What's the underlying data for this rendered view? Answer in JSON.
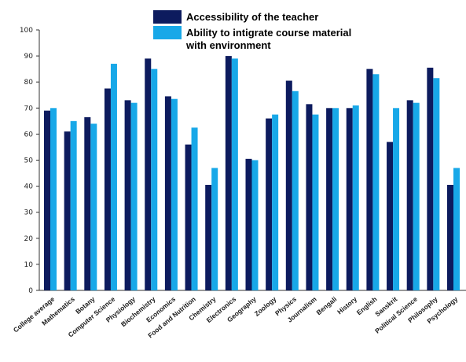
{
  "chart_data": {
    "type": "bar",
    "title": "",
    "xlabel": "",
    "ylabel": "",
    "ylim": [
      0,
      100
    ],
    "yticks": [
      0,
      10,
      20,
      30,
      40,
      50,
      60,
      70,
      80,
      90,
      100
    ],
    "ytick_labels": [
      "0",
      "10",
      "20",
      "30",
      "40",
      "50",
      "60",
      "70",
      "80",
      "90",
      "100"
    ],
    "legend_position": "top",
    "grid": false,
    "categories": [
      "College average",
      "Mathematics",
      "Botany",
      "Computer Science",
      "Physiology",
      "Biochemistry",
      "Economics",
      "Food and Nutrition",
      "Chemistry",
      "Electronics",
      "Geography",
      "Zoology",
      "Physics",
      "Journalism",
      "Bengali",
      "History",
      "English",
      "Sanskrit",
      "Political Science",
      "Philosophy",
      "Psychology"
    ],
    "series": [
      {
        "name": "Accessibility of the teacher",
        "color": "#0d1b5e",
        "values": [
          69,
          61,
          66.5,
          77.5,
          73,
          89,
          74.5,
          56,
          40.5,
          90,
          50.5,
          66,
          80.5,
          71.5,
          70,
          70,
          85,
          57,
          73,
          85.5,
          40.5
        ]
      },
      {
        "name": "Ability to intigrate course material with environment",
        "legend_lines": [
          "Ability to intigrate course material",
          "with environment"
        ],
        "color": "#18a8e8",
        "values": [
          70,
          65,
          64,
          87,
          72,
          85,
          73.5,
          62.5,
          47,
          89,
          50,
          67.5,
          76.5,
          67.5,
          70,
          71,
          83,
          70,
          72,
          81.5,
          47
        ]
      }
    ]
  }
}
